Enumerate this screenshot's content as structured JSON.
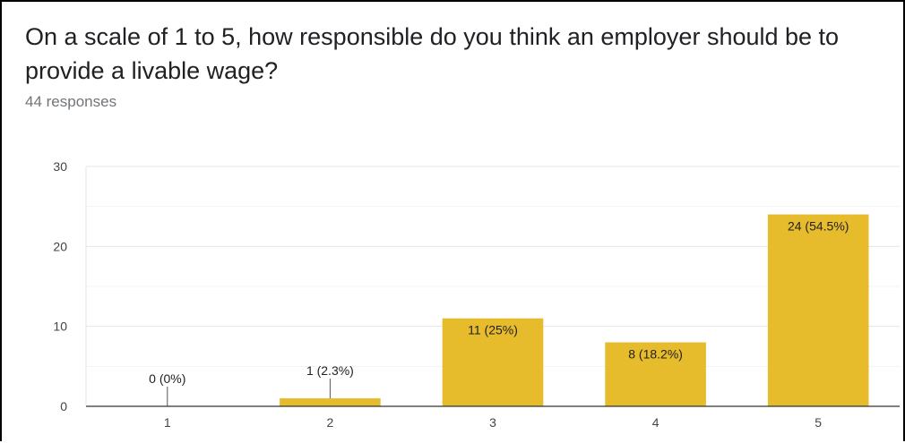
{
  "question": {
    "title": "On a scale of 1 to 5, how responsible do you think an employer should be to provide a livable wage?",
    "responses": "44 responses"
  },
  "colors": {
    "bar": "#e6bb2c",
    "grid_major": "#e5e5e5",
    "grid_minor": "#f3f3f3",
    "axis": "#333333"
  },
  "chart_data": {
    "type": "bar",
    "categories": [
      "1",
      "2",
      "3",
      "4",
      "5"
    ],
    "values": [
      0,
      1,
      11,
      8,
      24
    ],
    "data_labels": [
      "0 (0%)",
      "1 (2.3%)",
      "11 (25%)",
      "8 (18.2%)",
      "24 (54.5%)"
    ],
    "ylim": [
      0,
      30
    ],
    "yticks": [
      0,
      10,
      20,
      30
    ],
    "grid": true
  }
}
